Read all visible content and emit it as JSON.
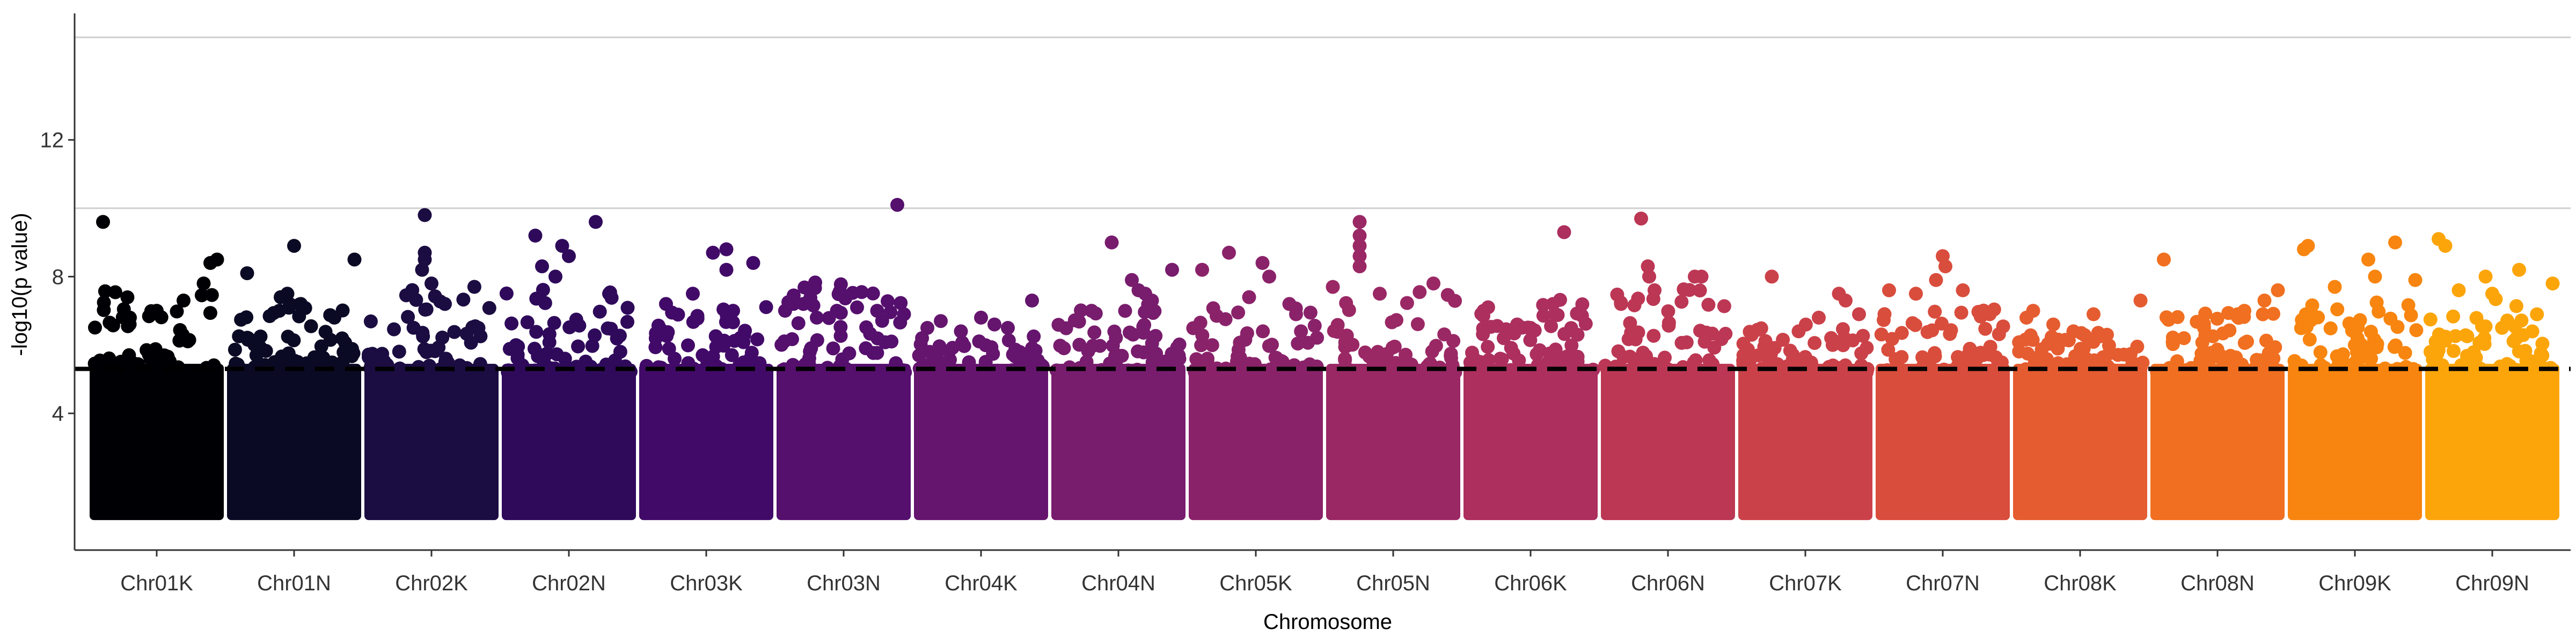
{
  "chart_data": {
    "type": "scatter",
    "title": "",
    "xlabel": "Chromosome",
    "ylabel": "-log10(p value)",
    "ylim": [
      0,
      15.7
    ],
    "y_ticks": [
      4,
      8,
      12
    ],
    "threshold_line": {
      "y": 5.3,
      "style": "dashed",
      "color": "#000000"
    },
    "reference_lines": [
      10,
      15
    ],
    "grid": false,
    "legend": "none",
    "categories": [
      "Chr01K",
      "Chr01N",
      "Chr02K",
      "Chr02N",
      "Chr03K",
      "Chr03N",
      "Chr04K",
      "Chr04N",
      "Chr05K",
      "Chr05N",
      "Chr06K",
      "Chr06N",
      "Chr07K",
      "Chr07N",
      "Chr08K",
      "Chr08N",
      "Chr09K",
      "Chr09N"
    ],
    "colors": [
      "#000004",
      "#0b0a24",
      "#1b0c41",
      "#2f0a5b",
      "#420a68",
      "#550f6d",
      "#65156e",
      "#781c6d",
      "#8a226a",
      "#9a2865",
      "#ac2f5e",
      "#bc3754",
      "#cb4149",
      "#d94d3d",
      "#e55c30",
      "#f06f20",
      "#f8850f",
      "#fca50a"
    ],
    "series": [
      {
        "name": "Chr01K",
        "min_y": 1.0,
        "max_y": 9.6,
        "top_points": [
          [
            0.1,
            9.6
          ],
          [
            0.95,
            8.5
          ],
          [
            0.9,
            8.4
          ],
          [
            0.85,
            7.8
          ],
          [
            0.7,
            7.3
          ],
          [
            0.5,
            7.0
          ],
          [
            0.3,
            6.8
          ]
        ]
      },
      {
        "name": "Chr01N",
        "min_y": 1.0,
        "max_y": 8.9,
        "top_points": [
          [
            0.5,
            8.9
          ],
          [
            0.95,
            8.5
          ],
          [
            0.15,
            8.1
          ],
          [
            0.45,
            7.5
          ],
          [
            0.4,
            7.4
          ],
          [
            0.55,
            7.2
          ],
          [
            0.8,
            6.8
          ]
        ]
      },
      {
        "name": "Chr02K",
        "min_y": 1.0,
        "max_y": 9.8,
        "top_points": [
          [
            0.45,
            9.8
          ],
          [
            0.45,
            8.7
          ],
          [
            0.45,
            8.5
          ],
          [
            0.43,
            8.2
          ],
          [
            0.5,
            7.8
          ],
          [
            0.6,
            7.2
          ],
          [
            0.85,
            6.5
          ]
        ]
      },
      {
        "name": "Chr02N",
        "min_y": 1.0,
        "max_y": 9.6,
        "top_points": [
          [
            0.7,
            9.6
          ],
          [
            0.25,
            9.2
          ],
          [
            0.45,
            8.9
          ],
          [
            0.5,
            8.6
          ],
          [
            0.3,
            8.3
          ],
          [
            0.4,
            8.0
          ],
          [
            0.8,
            7.5
          ]
        ]
      },
      {
        "name": "Chr03K",
        "min_y": 1.0,
        "max_y": 8.8,
        "top_points": [
          [
            0.65,
            8.8
          ],
          [
            0.55,
            8.7
          ],
          [
            0.85,
            8.4
          ],
          [
            0.65,
            8.2
          ],
          [
            0.4,
            7.5
          ],
          [
            0.2,
            7.2
          ],
          [
            0.7,
            7.0
          ]
        ]
      },
      {
        "name": "Chr03N",
        "min_y": 1.0,
        "max_y": 10.1,
        "top_points": [
          [
            0.9,
            10.1
          ],
          [
            0.2,
            7.2
          ],
          [
            0.6,
            7.1
          ],
          [
            0.45,
            7.0
          ],
          [
            0.75,
            7.0
          ],
          [
            0.3,
            6.8
          ],
          [
            0.95,
            6.9
          ]
        ]
      },
      {
        "name": "Chr04K",
        "min_y": 1.0,
        "max_y": 7.3,
        "top_points": [
          [
            0.88,
            7.3
          ],
          [
            0.5,
            6.8
          ],
          [
            0.2,
            6.7
          ],
          [
            0.6,
            6.6
          ],
          [
            0.7,
            6.5
          ],
          [
            0.35,
            6.4
          ],
          [
            0.1,
            6.5
          ]
        ]
      },
      {
        "name": "Chr04N",
        "min_y": 1.0,
        "max_y": 9.0,
        "top_points": [
          [
            0.45,
            9.0
          ],
          [
            0.9,
            8.2
          ],
          [
            0.6,
            7.9
          ],
          [
            0.65,
            7.6
          ],
          [
            0.7,
            7.5
          ],
          [
            0.3,
            7.0
          ],
          [
            0.75,
            7.3
          ]
        ]
      },
      {
        "name": "Chr05K",
        "min_y": 1.0,
        "max_y": 8.7,
        "top_points": [
          [
            0.3,
            8.7
          ],
          [
            0.1,
            8.2
          ],
          [
            0.55,
            8.4
          ],
          [
            0.6,
            8.0
          ],
          [
            0.45,
            7.4
          ],
          [
            0.75,
            7.2
          ],
          [
            0.8,
            6.9
          ]
        ]
      },
      {
        "name": "Chr05N",
        "min_y": 1.0,
        "max_y": 9.6,
        "top_points": [
          [
            0.25,
            9.6
          ],
          [
            0.25,
            9.2
          ],
          [
            0.25,
            8.9
          ],
          [
            0.25,
            8.6
          ],
          [
            0.25,
            8.3
          ],
          [
            0.05,
            7.7
          ],
          [
            0.4,
            7.5
          ],
          [
            0.8,
            7.8
          ]
        ]
      },
      {
        "name": "Chr06K",
        "min_y": 1.0,
        "max_y": 9.3,
        "top_points": [
          [
            0.75,
            9.3
          ],
          [
            0.68,
            6.9
          ],
          [
            0.15,
            7.0
          ],
          [
            0.4,
            6.6
          ],
          [
            0.5,
            6.5
          ],
          [
            0.85,
            6.3
          ],
          [
            0.3,
            6.2
          ]
        ]
      },
      {
        "name": "Chr06N",
        "min_y": 1.0,
        "max_y": 9.7,
        "top_points": [
          [
            0.3,
            9.7
          ],
          [
            0.35,
            8.3
          ],
          [
            0.36,
            8.0
          ],
          [
            0.4,
            7.6
          ],
          [
            0.7,
            8.0
          ],
          [
            0.75,
            8.0
          ],
          [
            0.15,
            7.2
          ]
        ]
      },
      {
        "name": "Chr07K",
        "min_y": 1.0,
        "max_y": 8.0,
        "top_points": [
          [
            0.25,
            8.0
          ],
          [
            0.75,
            7.5
          ],
          [
            0.8,
            7.3
          ],
          [
            0.6,
            6.8
          ],
          [
            0.9,
            6.9
          ],
          [
            0.45,
            6.4
          ],
          [
            0.1,
            6.3
          ]
        ]
      },
      {
        "name": "Chr07N",
        "min_y": 1.0,
        "max_y": 8.6,
        "top_points": [
          [
            0.5,
            8.6
          ],
          [
            0.52,
            8.3
          ],
          [
            0.45,
            7.9
          ],
          [
            0.65,
            7.6
          ],
          [
            0.3,
            7.5
          ],
          [
            0.1,
            7.6
          ],
          [
            0.85,
            6.9
          ]
        ]
      },
      {
        "name": "Chr08K",
        "min_y": 1.0,
        "max_y": 7.3,
        "top_points": [
          [
            0.95,
            7.3
          ],
          [
            0.15,
            7.0
          ],
          [
            0.6,
            6.9
          ],
          [
            0.3,
            6.6
          ],
          [
            0.1,
            6.8
          ],
          [
            0.45,
            6.4
          ],
          [
            0.7,
            6.3
          ]
        ]
      },
      {
        "name": "Chr08N",
        "min_y": 1.0,
        "max_y": 8.5,
        "top_points": [
          [
            0.1,
            8.5
          ],
          [
            0.95,
            7.6
          ],
          [
            0.85,
            7.3
          ],
          [
            0.65,
            6.9
          ],
          [
            0.7,
            7.0
          ],
          [
            0.4,
            6.5
          ],
          [
            0.25,
            6.2
          ]
        ]
      },
      {
        "name": "Chr09K",
        "min_y": 1.0,
        "max_y": 9.0,
        "top_points": [
          [
            0.8,
            9.0
          ],
          [
            0.15,
            8.9
          ],
          [
            0.12,
            8.8
          ],
          [
            0.6,
            8.5
          ],
          [
            0.65,
            8.0
          ],
          [
            0.35,
            7.7
          ],
          [
            0.95,
            7.9
          ]
        ]
      },
      {
        "name": "Chr09N",
        "min_y": 1.0,
        "max_y": 9.1,
        "top_points": [
          [
            0.1,
            9.1
          ],
          [
            0.15,
            8.9
          ],
          [
            0.7,
            8.2
          ],
          [
            0.95,
            7.8
          ],
          [
            0.45,
            8.0
          ],
          [
            0.25,
            7.6
          ],
          [
            0.5,
            7.5
          ]
        ]
      }
    ]
  }
}
